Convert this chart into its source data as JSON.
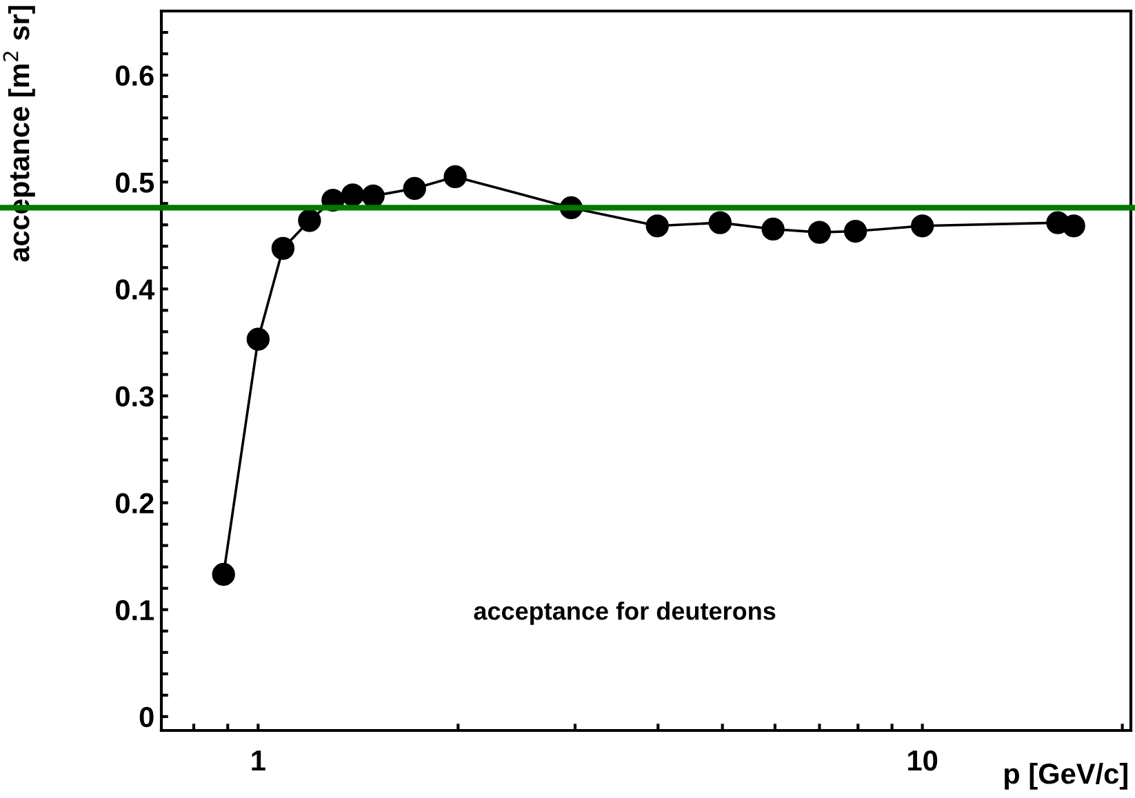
{
  "chart_data": {
    "type": "line",
    "xlabel": "p [GeV/c]",
    "ylabel": "acceptance [m$^{2}$ sr]",
    "annotations": [
      "acceptance for deuterons"
    ],
    "x": [
      0.887,
      1.0,
      1.09,
      1.195,
      1.296,
      1.388,
      1.49,
      1.72,
      1.98,
      2.96,
      3.99,
      4.96,
      5.96,
      7.0,
      7.93,
      10.0,
      15.99,
      16.9
    ],
    "series": [
      {
        "color": "#000000",
        "values": [
          0.133,
          0.353,
          0.438,
          0.464,
          0.483,
          0.488,
          0.487,
          0.494,
          0.505,
          0.476,
          0.459,
          0.462,
          0.456,
          0.453,
          0.454,
          0.459,
          0.462,
          0.459
        ]
      }
    ],
    "log": "x",
    "marker": "circle",
    "line_style": "solid",
    "grid": false,
    "legend": false,
    "xlim": [
      0.715,
      20.6
    ],
    "ylim": [
      -0.013,
      0.66
    ],
    "xticks": [
      {
        "value": 0.8,
        "label": null
      },
      {
        "value": 0.9,
        "label": null
      },
      1,
      {
        "value": 2,
        "label": null
      },
      {
        "value": 3,
        "label": null
      },
      {
        "value": 4,
        "label": null
      },
      {
        "value": 5,
        "label": null
      },
      {
        "value": 6,
        "label": null
      },
      {
        "value": 7,
        "label": null
      },
      {
        "value": 8,
        "label": null
      },
      {
        "value": 9,
        "label": null
      },
      10,
      {
        "value": 20,
        "label": null
      }
    ],
    "yticks": [
      0,
      {
        "value": 0.02,
        "label": null
      },
      {
        "value": 0.04,
        "label": null
      },
      {
        "value": 0.06,
        "label": null
      },
      {
        "value": 0.08,
        "label": null
      },
      0.1,
      {
        "value": 0.12,
        "label": null
      },
      {
        "value": 0.14,
        "label": null
      },
      {
        "value": 0.16,
        "label": null
      },
      {
        "value": 0.18,
        "label": null
      },
      0.2,
      {
        "value": 0.22,
        "label": null
      },
      {
        "value": 0.24,
        "label": null
      },
      {
        "value": 0.26,
        "label": null
      },
      {
        "value": 0.28,
        "label": null
      },
      0.3,
      {
        "value": 0.32,
        "label": null
      },
      {
        "value": 0.34,
        "label": null
      },
      {
        "value": 0.36,
        "label": null
      },
      {
        "value": 0.38,
        "label": null
      },
      0.4,
      {
        "value": 0.42,
        "label": null
      },
      {
        "value": 0.44,
        "label": null
      },
      {
        "value": 0.46,
        "label": null
      },
      {
        "value": 0.48,
        "label": null
      },
      0.5,
      {
        "value": 0.52,
        "label": null
      },
      {
        "value": 0.54,
        "label": null
      },
      {
        "value": 0.56,
        "label": null
      },
      {
        "value": 0.58,
        "label": null
      },
      0.6,
      {
        "value": 0.62,
        "label": null
      },
      {
        "value": 0.64,
        "label": null
      }
    ],
    "ref_lines": [
      {
        "axis": "y",
        "value": 0.476,
        "color": "#007a00",
        "line_style": "solid"
      }
    ]
  }
}
